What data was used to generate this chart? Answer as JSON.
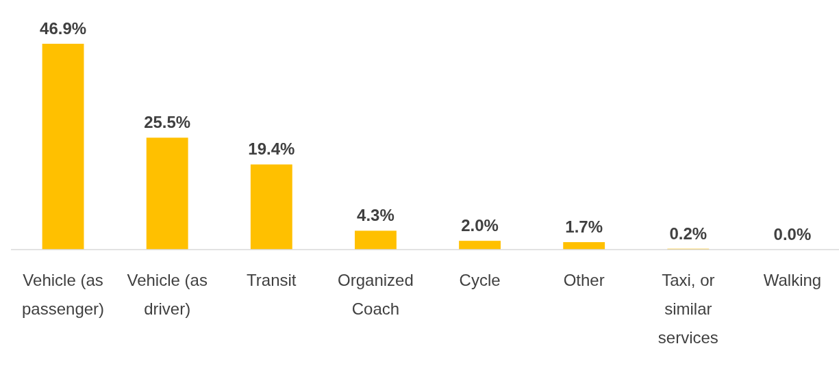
{
  "chart_data": {
    "type": "bar",
    "categories": [
      "Vehicle (as passenger)",
      "Vehicle (as driver)",
      "Transit",
      "Organized Coach",
      "Cycle",
      "Other",
      "Taxi, or similar services",
      "Walking"
    ],
    "values": [
      46.9,
      25.5,
      19.4,
      4.3,
      2.0,
      1.7,
      0.2,
      0.0
    ],
    "value_labels": [
      "46.9%",
      "25.5%",
      "19.4%",
      "4.3%",
      "2.0%",
      "1.7%",
      "0.2%",
      "0.0%"
    ],
    "color": "#ffc000"
  }
}
